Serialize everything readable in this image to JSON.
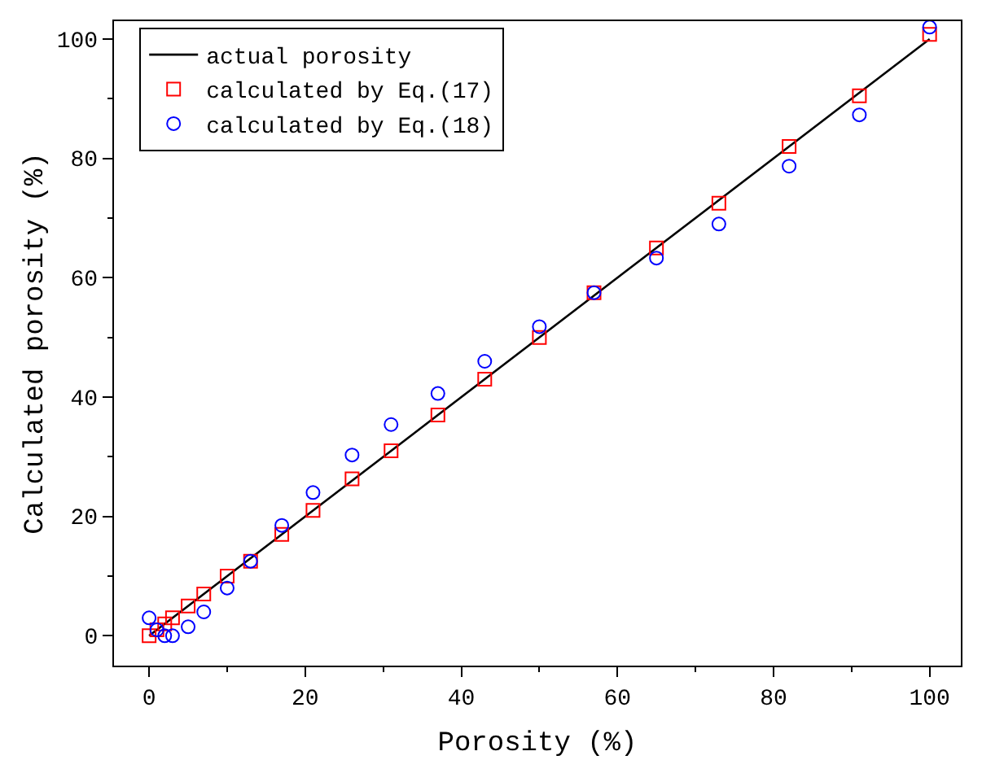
{
  "chart_data": {
    "type": "scatter",
    "xlabel": "Porosity (%)",
    "ylabel": "Calculated porosity (%)",
    "xlim": [
      -4.5,
      104
    ],
    "ylim": [
      -5,
      103
    ],
    "xticks": [
      0,
      20,
      40,
      60,
      80,
      100
    ],
    "yticks": [
      0,
      20,
      40,
      60,
      80,
      100
    ],
    "grid": false,
    "legend": "top left",
    "series": [
      {
        "name": "actual porosity",
        "type": "line",
        "color": "#000000",
        "marker": "none",
        "line_style": "solid",
        "x": [
          0,
          100
        ],
        "values": [
          0,
          100
        ]
      },
      {
        "name": "calculated by Eq.(17)",
        "color": "#ff0000",
        "marker": "square",
        "x": [
          0,
          1,
          2,
          3,
          5,
          7,
          10,
          13,
          17,
          21,
          26,
          31,
          37,
          43,
          50,
          57,
          65,
          73,
          82,
          91,
          100
        ],
        "values": [
          0,
          1,
          2,
          3,
          5,
          7,
          10,
          12.5,
          17,
          21,
          26.3,
          31,
          37,
          43,
          50,
          57.5,
          65,
          72.5,
          82,
          90.5,
          100.8
        ]
      },
      {
        "name": "calculated by Eq.(18)",
        "color": "#0000ff",
        "marker": "circle",
        "x": [
          0,
          1,
          2,
          3,
          5,
          7,
          10,
          13,
          17,
          21,
          26,
          31,
          37,
          43,
          50,
          57,
          65,
          73,
          82,
          91,
          100
        ],
        "values": [
          3,
          1,
          0,
          0,
          1.5,
          4,
          8,
          12.5,
          18.5,
          24,
          30.3,
          35.4,
          40.6,
          46,
          51.8,
          57.5,
          63.3,
          69,
          78.7,
          87.3,
          102
        ]
      }
    ]
  }
}
